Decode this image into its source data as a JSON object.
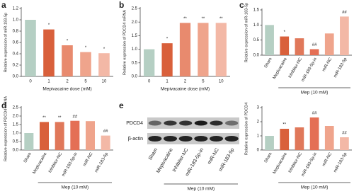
{
  "chart_data": [
    {
      "type": "bar",
      "panel": "a",
      "y_label": "Relative expression of miR-183-5p",
      "x_label": "Mepivacaine dose (mM)",
      "categories": [
        "0",
        "1",
        "2",
        "5",
        "10"
      ],
      "values": [
        1.0,
        0.83,
        0.55,
        0.43,
        0.41
      ],
      "colors": [
        "#b5cfc3",
        "#d9603b",
        "#e88a6e",
        "#efa48c",
        "#f3b8a6"
      ],
      "annotations": [
        null,
        "*",
        "*",
        "*",
        "*"
      ],
      "ylim": [
        0,
        1.2
      ],
      "yticks": [
        {
          "value": 0,
          "label": "0.0"
        },
        0.2,
        0.4,
        0.6,
        0.8,
        {
          "value": 1,
          "label": "1.0"
        },
        1.2
      ]
    },
    {
      "type": "bar",
      "panel": "b",
      "y_label": "Relative expression of PDCD4 mRNA",
      "x_label": "Mepivacaine dose (mM)",
      "categories": [
        "0",
        "1",
        "2",
        "5",
        "10"
      ],
      "values": [
        1.0,
        1.22,
        1.97,
        1.97,
        1.97
      ],
      "colors": [
        "#b5cfc3",
        "#d9603b",
        "#e88a6e",
        "#efa48c",
        "#f3b8a6"
      ],
      "annotations": [
        null,
        "*",
        "**",
        "**",
        "**"
      ],
      "ylim": [
        0,
        2.5
      ],
      "yticks": [
        {
          "value": 0,
          "label": "0.0"
        },
        0.5,
        {
          "value": 1,
          "label": "1.0"
        },
        1.5,
        {
          "value": 2,
          "label": "2.0"
        },
        2.5
      ]
    },
    {
      "type": "bar",
      "panel": "c",
      "y_label": "Relative expression of miR-183-5p",
      "group_label": "Mep (10 mM)",
      "categories": [
        "Sham",
        "Mepivacaine",
        "Inhibitor-NC",
        "miR-183-5p-in",
        "miR-NC",
        "miR-183-5p"
      ],
      "values": [
        1.0,
        0.62,
        0.56,
        0.2,
        0.72,
        1.28
      ],
      "colors": [
        "#b5cfc3",
        "#d9603b",
        "#e0785a",
        "#e46f55",
        "#efa48c",
        "#f3b8a6"
      ],
      "annotations": [
        null,
        "*",
        null,
        "##",
        null,
        "##"
      ],
      "ylim": [
        0,
        1.5
      ],
      "yticks": [
        {
          "value": 0,
          "label": "0.0"
        },
        0.5,
        {
          "value": 1,
          "label": "1.0"
        },
        1.5
      ]
    },
    {
      "type": "bar",
      "panel": "d",
      "y_label": "Relative expression of PDCD4 mRNA",
      "group_label": "Mep (10 mM)",
      "categories": [
        "Sham",
        "Mepivacaine",
        "Inhibitor-NC",
        "miR-183-5p-in",
        "miR-NC",
        "miR-183-5p"
      ],
      "values": [
        1.0,
        1.65,
        1.65,
        1.72,
        1.7,
        0.85
      ],
      "colors": [
        "#b5cfc3",
        "#d9603b",
        "#e0785a",
        "#e46f55",
        "#efa48c",
        "#f3b8a6"
      ],
      "annotations": [
        null,
        "**",
        "**",
        "##",
        null,
        "##"
      ],
      "ylim": [
        0,
        2.5
      ],
      "yticks": [
        {
          "value": 0,
          "label": "0.0"
        },
        0.5,
        {
          "value": 1,
          "label": "1.0"
        },
        1.5,
        {
          "value": 2,
          "label": "2.0"
        },
        2.5
      ]
    },
    {
      "type": "bar",
      "y_label": "Relative expression of PDCD4",
      "group_label": "Mep (10 mM)",
      "categories": [
        "Sham",
        "Mepivacaine",
        "Inhibitor-NC",
        "miR-183-5p-in",
        "miR-NC",
        "miR-183-5p"
      ],
      "values": [
        1.0,
        1.5,
        1.6,
        2.3,
        1.7,
        0.9
      ],
      "colors": [
        "#b5cfc3",
        "#d9603b",
        "#e0785a",
        "#e46f55",
        "#efa48c",
        "#f3b8a6"
      ],
      "annotations": [
        null,
        "**",
        null,
        "##",
        null,
        "##"
      ],
      "ylim": [
        0,
        3
      ],
      "yticks": [
        0,
        1,
        2,
        3
      ]
    }
  ],
  "blot": {
    "panel": "e",
    "proteins": [
      "PDCD4",
      "β-actin"
    ],
    "lanes": [
      "Sham",
      "Mepivacaine",
      "Inhibitor-NC",
      "miR-183-5p-in",
      "miR-NC",
      "miR-183-5p"
    ],
    "group_label": "Mep (10 mM)"
  }
}
